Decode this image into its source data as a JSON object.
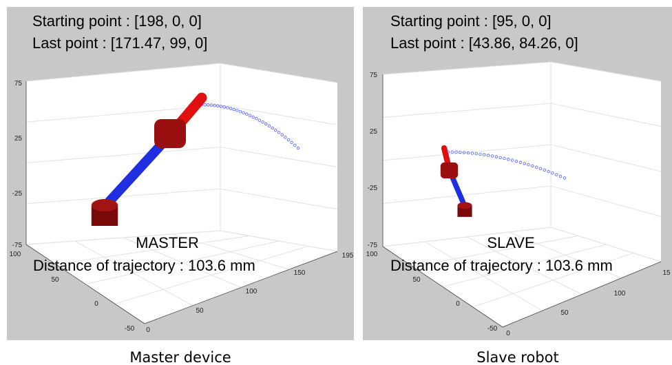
{
  "panels": [
    {
      "starting_point": "Starting point : [198, 0, 0]",
      "last_point": "Last point : [171.47, 99, 0]",
      "label": "MASTER",
      "distance": "Distance of trajectory : 103.6 mm",
      "z_ticks": [
        "75",
        "25",
        "-25",
        "-75"
      ],
      "y_ticks": [
        "100",
        "50",
        "0",
        "-50"
      ],
      "x_ticks": [
        "0",
        "50",
        "100",
        "150",
        "195"
      ],
      "caption": "Master device"
    },
    {
      "starting_point": "Starting point : [95, 0, 0]",
      "last_point": "Last point : [43.86, 84.26, 0]",
      "label": "SLAVE",
      "distance": "Distance of trajectory : 103.6 mm",
      "z_ticks": [
        "75",
        "25",
        "-25",
        "-75"
      ],
      "y_ticks": [
        "100",
        "50",
        "0",
        "-50"
      ],
      "x_ticks": [
        "0",
        "50",
        "100",
        "15"
      ],
      "caption": "Slave robot"
    }
  ]
}
